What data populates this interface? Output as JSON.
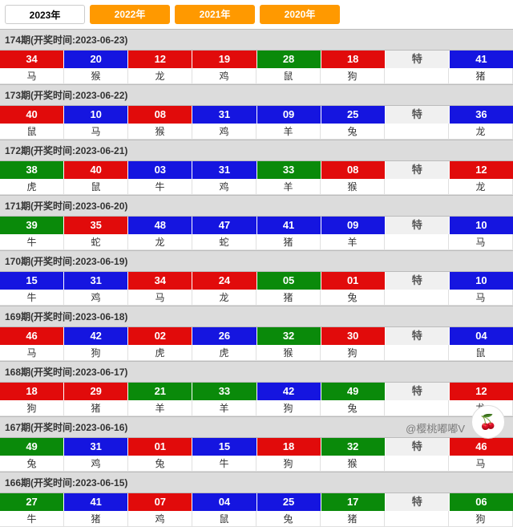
{
  "colors": {
    "red": "#e10b0b",
    "blue": "#1515e0",
    "green": "#0a8a0a"
  },
  "tabs": [
    {
      "label": "2023年",
      "active": true
    },
    {
      "label": "2022年",
      "active": false
    },
    {
      "label": "2021年",
      "active": false
    },
    {
      "label": "2020年",
      "active": false
    }
  ],
  "te_label": "特",
  "watermark": "@樱桃嘟嘟V",
  "periods": [
    {
      "id": "174",
      "date": "2023-06-23",
      "header": "174期(开奖时间:2023-06-23)",
      "cells": [
        {
          "n": "34",
          "z": "马",
          "c": "red"
        },
        {
          "n": "20",
          "z": "猴",
          "c": "blue"
        },
        {
          "n": "12",
          "z": "龙",
          "c": "red"
        },
        {
          "n": "19",
          "z": "鸡",
          "c": "red"
        },
        {
          "n": "28",
          "z": "鼠",
          "c": "green"
        },
        {
          "n": "18",
          "z": "狗",
          "c": "red"
        }
      ],
      "sp": {
        "n": "41",
        "z": "猪",
        "c": "blue"
      }
    },
    {
      "id": "173",
      "date": "2023-06-22",
      "header": "173期(开奖时间:2023-06-22)",
      "cells": [
        {
          "n": "40",
          "z": "鼠",
          "c": "red"
        },
        {
          "n": "10",
          "z": "马",
          "c": "blue"
        },
        {
          "n": "08",
          "z": "猴",
          "c": "red"
        },
        {
          "n": "31",
          "z": "鸡",
          "c": "blue"
        },
        {
          "n": "09",
          "z": "羊",
          "c": "blue"
        },
        {
          "n": "25",
          "z": "兔",
          "c": "blue"
        }
      ],
      "sp": {
        "n": "36",
        "z": "龙",
        "c": "blue"
      }
    },
    {
      "id": "172",
      "date": "2023-06-21",
      "header": "172期(开奖时间:2023-06-21)",
      "cells": [
        {
          "n": "38",
          "z": "虎",
          "c": "green"
        },
        {
          "n": "40",
          "z": "鼠",
          "c": "red"
        },
        {
          "n": "03",
          "z": "牛",
          "c": "blue"
        },
        {
          "n": "31",
          "z": "鸡",
          "c": "blue"
        },
        {
          "n": "33",
          "z": "羊",
          "c": "green"
        },
        {
          "n": "08",
          "z": "猴",
          "c": "red"
        }
      ],
      "sp": {
        "n": "12",
        "z": "龙",
        "c": "red"
      }
    },
    {
      "id": "171",
      "date": "2023-06-20",
      "header": "171期(开奖时间:2023-06-20)",
      "cells": [
        {
          "n": "39",
          "z": "牛",
          "c": "green"
        },
        {
          "n": "35",
          "z": "蛇",
          "c": "red"
        },
        {
          "n": "48",
          "z": "龙",
          "c": "blue"
        },
        {
          "n": "47",
          "z": "蛇",
          "c": "blue"
        },
        {
          "n": "41",
          "z": "猪",
          "c": "blue"
        },
        {
          "n": "09",
          "z": "羊",
          "c": "blue"
        }
      ],
      "sp": {
        "n": "10",
        "z": "马",
        "c": "blue"
      }
    },
    {
      "id": "170",
      "date": "2023-06-19",
      "header": "170期(开奖时间:2023-06-19)",
      "cells": [
        {
          "n": "15",
          "z": "牛",
          "c": "blue"
        },
        {
          "n": "31",
          "z": "鸡",
          "c": "blue"
        },
        {
          "n": "34",
          "z": "马",
          "c": "red"
        },
        {
          "n": "24",
          "z": "龙",
          "c": "red"
        },
        {
          "n": "05",
          "z": "猪",
          "c": "green"
        },
        {
          "n": "01",
          "z": "兔",
          "c": "red"
        }
      ],
      "sp": {
        "n": "10",
        "z": "马",
        "c": "blue"
      }
    },
    {
      "id": "169",
      "date": "2023-06-18",
      "header": "169期(开奖时间:2023-06-18)",
      "cells": [
        {
          "n": "46",
          "z": "马",
          "c": "red"
        },
        {
          "n": "42",
          "z": "狗",
          "c": "blue"
        },
        {
          "n": "02",
          "z": "虎",
          "c": "red"
        },
        {
          "n": "26",
          "z": "虎",
          "c": "blue"
        },
        {
          "n": "32",
          "z": "猴",
          "c": "green"
        },
        {
          "n": "30",
          "z": "狗",
          "c": "red"
        }
      ],
      "sp": {
        "n": "04",
        "z": "鼠",
        "c": "blue"
      }
    },
    {
      "id": "168",
      "date": "2023-06-17",
      "header": "168期(开奖时间:2023-06-17)",
      "cells": [
        {
          "n": "18",
          "z": "狗",
          "c": "red"
        },
        {
          "n": "29",
          "z": "猪",
          "c": "red"
        },
        {
          "n": "21",
          "z": "羊",
          "c": "green"
        },
        {
          "n": "33",
          "z": "羊",
          "c": "green"
        },
        {
          "n": "42",
          "z": "狗",
          "c": "blue"
        },
        {
          "n": "49",
          "z": "兔",
          "c": "green"
        }
      ],
      "sp": {
        "n": "12",
        "z": "龙",
        "c": "red"
      }
    },
    {
      "id": "167",
      "date": "2023-06-16",
      "header": "167期(开奖时间:2023-06-16)",
      "cells": [
        {
          "n": "49",
          "z": "兔",
          "c": "green"
        },
        {
          "n": "31",
          "z": "鸡",
          "c": "blue"
        },
        {
          "n": "01",
          "z": "兔",
          "c": "red"
        },
        {
          "n": "15",
          "z": "牛",
          "c": "blue"
        },
        {
          "n": "18",
          "z": "狗",
          "c": "red"
        },
        {
          "n": "32",
          "z": "猴",
          "c": "green"
        }
      ],
      "sp": {
        "n": "46",
        "z": "马",
        "c": "red"
      }
    },
    {
      "id": "166",
      "date": "2023-06-15",
      "header": "166期(开奖时间:2023-06-15)",
      "cells": [
        {
          "n": "27",
          "z": "牛",
          "c": "green"
        },
        {
          "n": "41",
          "z": "猪",
          "c": "blue"
        },
        {
          "n": "07",
          "z": "鸡",
          "c": "red"
        },
        {
          "n": "04",
          "z": "鼠",
          "c": "blue"
        },
        {
          "n": "25",
          "z": "兔",
          "c": "blue"
        },
        {
          "n": "17",
          "z": "猪",
          "c": "green"
        }
      ],
      "sp": {
        "n": "06",
        "z": "狗",
        "c": "green"
      }
    }
  ]
}
